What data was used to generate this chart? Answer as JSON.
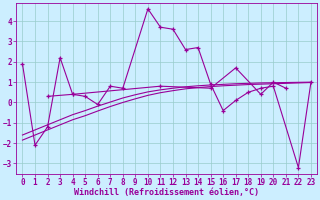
{
  "xlabel": "Windchill (Refroidissement éolien,°C)",
  "bg_color": "#cceeff",
  "line_color": "#990099",
  "grid_color": "#99cccc",
  "x_values": [
    0,
    1,
    2,
    3,
    4,
    5,
    6,
    7,
    8,
    9,
    10,
    11,
    12,
    13,
    14,
    15,
    16,
    17,
    18,
    19,
    20,
    21,
    22,
    23
  ],
  "series1": [
    1.9,
    -2.1,
    -1.2,
    2.2,
    0.4,
    0.3,
    -0.1,
    0.8,
    0.7,
    4.6,
    3.7,
    3.6,
    2.6,
    2.7,
    0.9,
    -0.4,
    0.1,
    0.5,
    0.7,
    0.8,
    -3.2,
    1.0
  ],
  "series1_x": [
    0,
    1,
    2,
    3,
    4,
    5,
    6,
    7,
    8,
    10,
    11,
    12,
    13,
    14,
    15,
    16,
    17,
    18,
    19,
    20,
    22,
    23
  ],
  "series2": [
    0.3,
    0.4,
    0.8,
    0.7,
    1.7,
    0.4,
    1.0,
    0.7
  ],
  "series2_x": [
    2,
    4,
    11,
    15,
    17,
    19,
    20,
    21
  ],
  "trend1": [
    -1.85,
    -1.6,
    -1.35,
    -1.1,
    -0.85,
    -0.65,
    -0.42,
    -0.2,
    0.0,
    0.18,
    0.35,
    0.48,
    0.58,
    0.67,
    0.73,
    0.78,
    0.82,
    0.85,
    0.88,
    0.9,
    0.92,
    0.94,
    0.96,
    0.98
  ],
  "trend2": [
    -1.6,
    -1.35,
    -1.1,
    -0.85,
    -0.6,
    -0.4,
    -0.18,
    0.02,
    0.22,
    0.38,
    0.52,
    0.62,
    0.7,
    0.77,
    0.82,
    0.86,
    0.89,
    0.92,
    0.94,
    0.96,
    0.97,
    0.98,
    0.99,
    1.0
  ],
  "ylim": [
    -3.5,
    4.9
  ],
  "yticks": [
    -3,
    -2,
    -1,
    0,
    1,
    2,
    3,
    4
  ],
  "xticks": [
    0,
    1,
    2,
    3,
    4,
    5,
    6,
    7,
    8,
    9,
    10,
    11,
    12,
    13,
    14,
    15,
    16,
    17,
    18,
    19,
    20,
    21,
    22,
    23
  ],
  "tick_fontsize": 5.5,
  "xlabel_fontsize": 6.0
}
